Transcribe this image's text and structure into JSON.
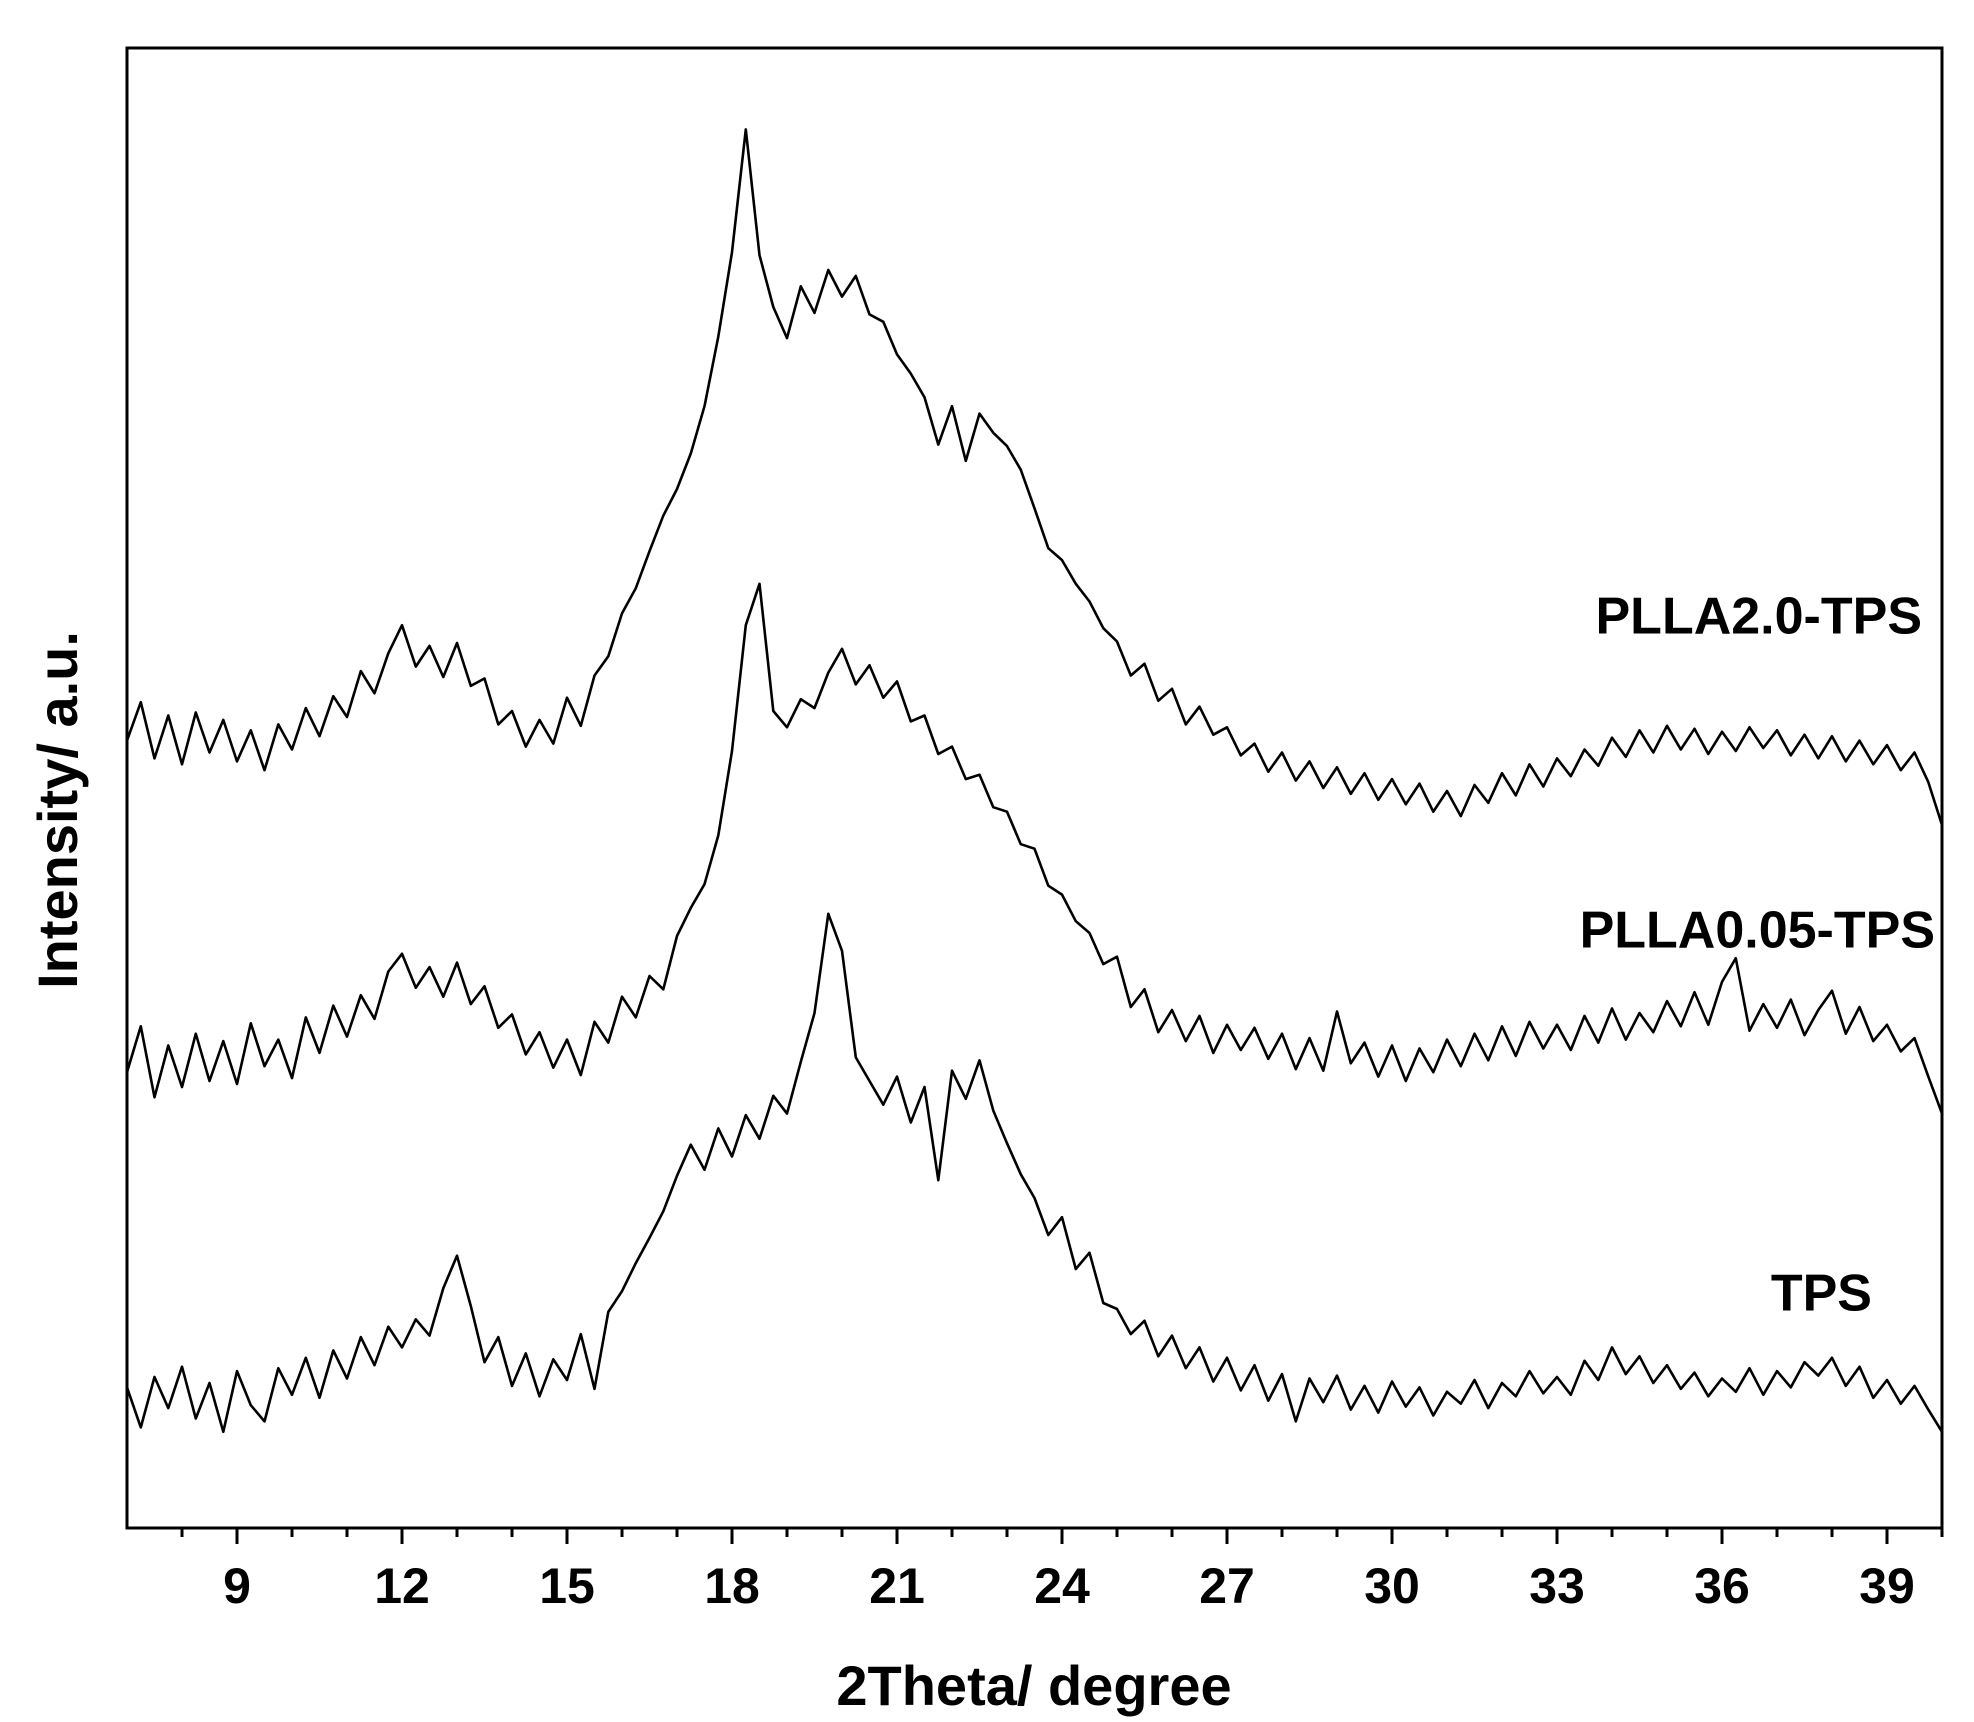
{
  "chart_data": {
    "type": "line",
    "xlabel": "2Theta/ degree",
    "ylabel": "Intensity/ a.u.",
    "xlim": [
      7,
      40
    ],
    "xticks": [
      9,
      12,
      15,
      18,
      21,
      24,
      27,
      30,
      33,
      36,
      39
    ],
    "xminorticks": [
      8,
      10,
      11,
      13,
      14,
      16,
      17,
      19,
      20,
      22,
      23,
      25,
      26,
      28,
      29,
      31,
      32,
      34,
      35,
      37,
      38,
      40
    ],
    "ylim": [
      0,
      100
    ],
    "x": [
      7,
      7.25,
      7.5,
      7.75,
      8,
      8.25,
      8.5,
      8.75,
      9,
      9.25,
      9.5,
      9.75,
      10,
      10.25,
      10.5,
      10.75,
      11,
      11.25,
      11.5,
      11.75,
      12,
      12.25,
      12.5,
      12.75,
      13,
      13.25,
      13.5,
      13.75,
      14,
      14.25,
      14.5,
      14.75,
      15,
      15.25,
      15.5,
      15.75,
      16,
      16.25,
      16.5,
      16.75,
      17,
      17.25,
      17.5,
      17.75,
      18,
      18.25,
      18.5,
      18.75,
      19,
      19.25,
      19.5,
      19.75,
      20,
      20.25,
      20.5,
      20.75,
      21,
      21.25,
      21.5,
      21.75,
      22,
      22.25,
      22.5,
      22.75,
      23,
      23.25,
      23.5,
      23.75,
      24,
      24.25,
      24.5,
      24.75,
      25,
      25.25,
      25.5,
      25.75,
      26,
      26.25,
      26.5,
      26.75,
      27,
      27.25,
      27.5,
      27.75,
      28,
      28.25,
      28.5,
      28.75,
      29,
      29.25,
      29.5,
      29.75,
      30,
      30.25,
      30.5,
      30.75,
      31,
      31.25,
      31.5,
      31.75,
      32,
      32.25,
      32.5,
      32.75,
      33,
      33.25,
      33.5,
      33.75,
      34,
      34.25,
      34.5,
      34.75,
      35,
      35.25,
      35.5,
      35.75,
      36,
      36.25,
      36.5,
      36.75,
      37,
      37.25,
      37.5,
      37.75,
      38,
      38.25,
      38.5,
      38.75,
      39,
      39.25,
      39.5,
      39.75,
      40
    ],
    "series": [
      {
        "name": "PLLA2.0-TPS",
        "color": "#000000",
        "values": [
          53.2,
          55.8,
          52.0,
          54.9,
          51.6,
          55.1,
          52.4,
          54.6,
          51.8,
          53.9,
          51.2,
          54.3,
          52.6,
          55.4,
          53.5,
          56.2,
          54.8,
          57.9,
          56.4,
          59.1,
          61.0,
          58.2,
          59.6,
          57.5,
          59.8,
          56.9,
          57.4,
          54.3,
          55.2,
          52.8,
          54.6,
          53.0,
          56.1,
          54.2,
          57.6,
          58.9,
          61.8,
          63.5,
          66.0,
          68.4,
          70.2,
          72.6,
          75.8,
          80.5,
          86.2,
          94.5,
          86.0,
          82.5,
          80.4,
          83.9,
          82.1,
          85.0,
          83.2,
          84.6,
          82.0,
          81.5,
          79.3,
          78.0,
          76.4,
          73.2,
          75.8,
          72.1,
          75.3,
          74.0,
          73.1,
          71.5,
          68.9,
          66.2,
          65.4,
          63.8,
          62.6,
          60.8,
          59.9,
          57.6,
          58.4,
          55.9,
          56.7,
          54.3,
          55.5,
          53.6,
          54.1,
          52.2,
          53.0,
          51.1,
          52.4,
          50.5,
          51.8,
          50.0,
          51.4,
          49.6,
          51.0,
          49.2,
          50.6,
          48.9,
          50.3,
          48.4,
          49.8,
          48.1,
          50.2,
          49.0,
          51.0,
          49.5,
          51.6,
          50.1,
          52.0,
          50.8,
          52.6,
          51.5,
          53.4,
          52.1,
          53.9,
          52.4,
          54.2,
          52.6,
          54.0,
          52.3,
          53.8,
          52.5,
          54.1,
          52.7,
          53.9,
          52.2,
          53.6,
          52.0,
          53.5,
          51.8,
          53.2,
          51.6,
          52.9,
          51.2,
          52.4,
          50.4,
          47.5
        ]
      },
      {
        "name": "PLLA0.05-TPS",
        "color": "#000000",
        "values": [
          30.8,
          33.9,
          29.1,
          32.6,
          29.8,
          33.4,
          30.2,
          32.9,
          30.0,
          34.1,
          31.2,
          33.0,
          30.4,
          34.5,
          32.1,
          35.3,
          33.2,
          36.0,
          34.4,
          37.6,
          38.8,
          36.5,
          37.9,
          35.9,
          38.2,
          35.4,
          36.6,
          33.8,
          34.7,
          32.0,
          33.5,
          31.1,
          33.0,
          30.6,
          34.2,
          32.8,
          35.9,
          34.5,
          37.3,
          36.4,
          40.0,
          41.9,
          43.5,
          46.8,
          52.5,
          61.0,
          63.8,
          55.2,
          54.1,
          56.0,
          55.4,
          57.8,
          59.4,
          57.0,
          58.3,
          56.1,
          57.2,
          54.5,
          54.9,
          52.3,
          52.8,
          50.6,
          50.9,
          48.7,
          48.4,
          46.2,
          45.9,
          43.4,
          42.8,
          41.0,
          40.2,
          38.1,
          38.6,
          35.2,
          36.4,
          33.5,
          35.0,
          32.9,
          34.6,
          32.1,
          34.0,
          32.3,
          33.8,
          31.7,
          33.4,
          31.0,
          33.1,
          30.9,
          34.9,
          31.4,
          32.8,
          30.5,
          32.6,
          30.2,
          32.4,
          30.8,
          33.0,
          31.2,
          33.4,
          31.6,
          33.9,
          31.9,
          34.2,
          32.4,
          34.0,
          32.3,
          34.6,
          32.8,
          35.1,
          33.0,
          34.8,
          33.5,
          35.6,
          33.9,
          36.2,
          34.0,
          36.9,
          38.5,
          33.6,
          35.4,
          33.8,
          35.7,
          33.3,
          35.0,
          36.3,
          33.4,
          35.2,
          32.9,
          34.0,
          32.2,
          33.1,
          30.5,
          28.0
        ]
      },
      {
        "name": "TPS",
        "color": "#000000",
        "values": [
          9.5,
          6.8,
          10.2,
          8.1,
          10.9,
          7.4,
          9.8,
          6.5,
          10.6,
          8.3,
          7.2,
          10.8,
          9.0,
          11.5,
          8.8,
          12.0,
          10.1,
          12.9,
          11.0,
          13.6,
          12.2,
          14.1,
          13.0,
          16.2,
          18.4,
          15.0,
          11.2,
          12.9,
          9.6,
          11.8,
          8.9,
          11.4,
          10.0,
          13.1,
          9.4,
          14.6,
          16.0,
          17.9,
          19.6,
          21.4,
          23.8,
          25.9,
          24.2,
          27.0,
          25.1,
          27.9,
          26.3,
          29.2,
          28.0,
          31.5,
          34.8,
          41.5,
          39.0,
          31.8,
          30.2,
          28.6,
          30.5,
          27.4,
          29.8,
          23.5,
          30.9,
          29.0,
          31.6,
          28.2,
          26.0,
          23.9,
          22.3,
          19.8,
          21.0,
          17.5,
          18.6,
          15.2,
          14.8,
          13.1,
          14.0,
          11.6,
          13.0,
          10.8,
          12.2,
          9.9,
          11.5,
          9.3,
          11.0,
          8.6,
          10.4,
          7.2,
          10.1,
          8.5,
          10.3,
          8.0,
          9.6,
          7.8,
          9.9,
          8.2,
          9.5,
          7.6,
          9.2,
          8.4,
          10.0,
          8.1,
          9.8,
          8.9,
          10.6,
          9.1,
          10.2,
          9.0,
          11.3,
          10.0,
          12.2,
          10.4,
          11.6,
          9.8,
          11.0,
          9.4,
          10.5,
          8.9,
          10.1,
          9.2,
          10.8,
          9.0,
          10.6,
          9.5,
          11.2,
          10.3,
          11.5,
          9.6,
          10.9,
          8.8,
          10.0,
          8.4,
          9.6,
          8.0,
          6.5
        ]
      }
    ]
  }
}
